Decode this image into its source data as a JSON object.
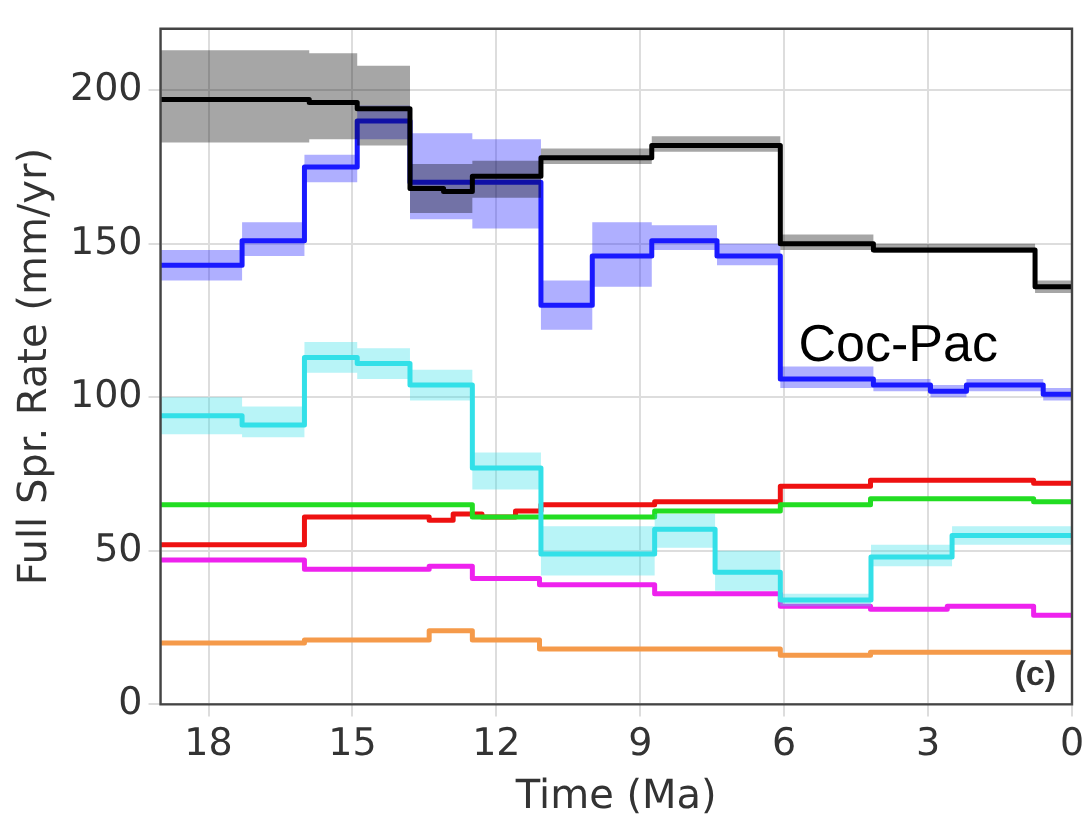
{
  "chart_data": {
    "type": "step",
    "xlabel": "Time (Ma)",
    "ylabel": "Full Spr. Rate (mm/yr)",
    "xlim": [
      19,
      0
    ],
    "xticks": [
      18,
      15,
      12,
      9,
      6,
      3,
      0
    ],
    "ylim": [
      0,
      220
    ],
    "yticks": [
      0,
      50,
      100,
      150,
      200
    ],
    "grid": true,
    "annotations": [
      "Coc-Pac",
      "(c)"
    ],
    "series": [
      {
        "color": "#000000",
        "x": [
          19,
          15.9,
          14.9,
          13.8,
          13.1,
          12.5,
          11.07,
          8.76,
          6.08,
          4.14,
          2.6,
          0.77,
          0
        ],
        "values": [
          197,
          196,
          194,
          168,
          167,
          172,
          178,
          182,
          150,
          148,
          148,
          136,
          136
        ],
        "lower": [
          183,
          184,
          182,
          160,
          160,
          165,
          176,
          180,
          148,
          147,
          147,
          134,
          134
        ],
        "upper": [
          213,
          212,
          208,
          176,
          176,
          177,
          181,
          185,
          153,
          150,
          150,
          138,
          138
        ]
      },
      {
        "color": "#1a1aff",
        "x": [
          19,
          17.3,
          16,
          14.9,
          13.8,
          12.5,
          11.07,
          10,
          8.76,
          7.4,
          6.08,
          4.14,
          2.95,
          2.2,
          0.6,
          0
        ],
        "values": [
          143,
          151,
          175,
          190,
          170,
          170,
          130,
          146,
          151,
          146,
          106,
          104,
          102,
          104,
          101,
          101
        ],
        "lower": [
          138,
          146,
          170,
          184,
          158,
          155,
          122,
          136,
          148,
          143,
          103,
          102,
          100,
          102,
          99,
          99
        ],
        "upper": [
          148,
          157,
          179,
          195,
          186,
          184,
          138,
          157,
          156,
          150,
          110,
          106,
          104,
          106,
          103,
          103
        ]
      },
      {
        "color": "#33e0e8",
        "x": [
          19,
          17.3,
          16,
          14.9,
          13.8,
          12.5,
          11.07,
          8.7,
          7.44,
          6.08,
          4.19,
          2.5,
          0
        ],
        "values": [
          94,
          91,
          113,
          111,
          104,
          77,
          49,
          57,
          43,
          34,
          48,
          55,
          55
        ],
        "lower": [
          88,
          87,
          108,
          106,
          99,
          70,
          42,
          51,
          37,
          32,
          45,
          52,
          52
        ],
        "upper": [
          100,
          97,
          118,
          116,
          109,
          82,
          58,
          62,
          50,
          36,
          52,
          58,
          58
        ]
      },
      {
        "color": "#22dd22",
        "x": [
          19,
          12.5,
          8.7,
          6.08,
          4.2,
          0.8,
          0
        ],
        "values": [
          65,
          61,
          63,
          65,
          67,
          66,
          66
        ]
      },
      {
        "color": "#ee1111",
        "x": [
          19,
          16,
          13.4,
          12.9,
          12.3,
          11.6,
          11.07,
          8.7,
          6.08,
          4.2,
          0.8,
          0
        ],
        "values": [
          52,
          61,
          60,
          62,
          61,
          63,
          65,
          66,
          71,
          73,
          72,
          72
        ]
      },
      {
        "color": "#ee22ee",
        "x": [
          19,
          16,
          13.4,
          12.5,
          11.1,
          8.7,
          6.08,
          4.2,
          2.6,
          0.8,
          0
        ],
        "values": [
          47,
          44,
          45,
          41,
          39,
          36,
          32,
          31,
          32,
          29,
          29
        ]
      },
      {
        "color": "#f59a4a",
        "x": [
          19,
          16,
          13.4,
          12.5,
          11.1,
          6.08,
          4.2,
          0
        ],
        "values": [
          20,
          21,
          24,
          21,
          18,
          16,
          17,
          17
        ]
      }
    ]
  }
}
